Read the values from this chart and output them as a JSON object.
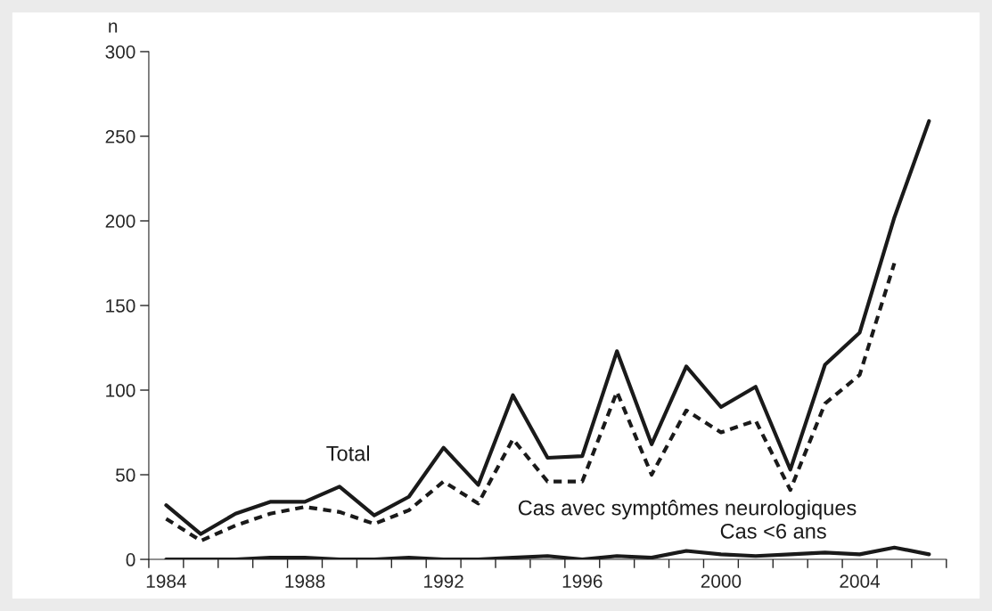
{
  "chart_data": {
    "type": "line",
    "ylabel": "n",
    "categories": [
      "1984",
      null,
      null,
      null,
      "1988",
      null,
      null,
      null,
      "1992",
      null,
      null,
      null,
      "1996",
      null,
      null,
      null,
      "2000",
      null,
      null,
      null,
      "2004",
      null,
      null
    ],
    "ylim": [
      0,
      300
    ],
    "yticks": [
      0,
      50,
      100,
      150,
      200,
      250,
      300
    ],
    "grid": false,
    "legend": false,
    "marker": "none",
    "series": [
      {
        "name": "Total",
        "color": "#1a1a1a",
        "line_style": "solid",
        "values": [
          32,
          15,
          27,
          34,
          34,
          43,
          26,
          37,
          66,
          44,
          97,
          60,
          61,
          123,
          68,
          114,
          90,
          102,
          53,
          115,
          134,
          202,
          259
        ]
      },
      {
        "name": "Cas avec symptômes neurologiques",
        "color": "#1a1a1a",
        "line_style": "dashed",
        "values": [
          24,
          11,
          20,
          27,
          31,
          28,
          21,
          29,
          46,
          33,
          71,
          46,
          46,
          99,
          50,
          88,
          75,
          82,
          41,
          92,
          109,
          175,
          null
        ]
      },
      {
        "name": "Cas <6 ans",
        "color": "#1a1a1a",
        "line_style": "solid",
        "values": [
          0,
          0,
          0,
          1,
          1,
          0,
          0,
          1,
          0,
          0,
          1,
          2,
          0,
          2,
          1,
          5,
          3,
          2,
          3,
          4,
          3,
          7,
          3
        ]
      }
    ]
  }
}
